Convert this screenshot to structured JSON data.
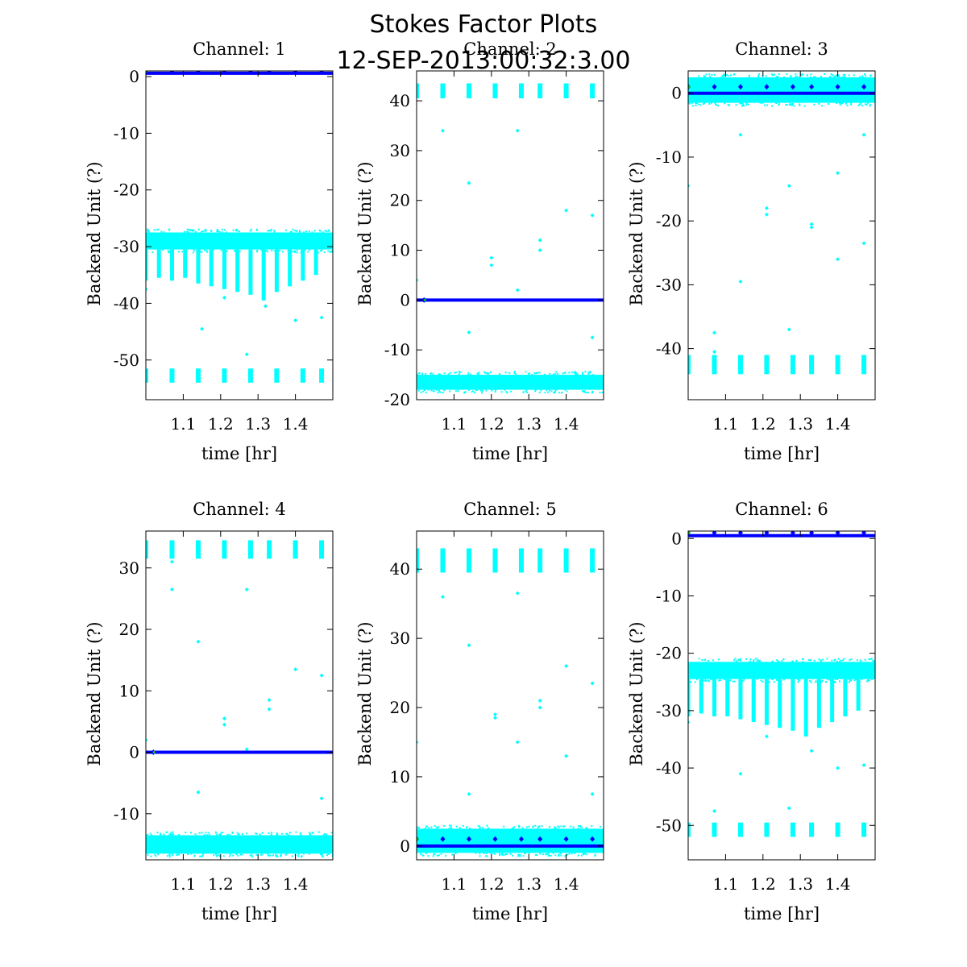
{
  "figure": {
    "title_line1": "Stokes Factor Plots",
    "title_line2": "12-SEP-2013:00:32:3.00"
  },
  "colors": {
    "data": "#00ffff",
    "mean": "#0000ff",
    "marker": "#00cc00",
    "axes": "#000000"
  },
  "chart_data": [
    {
      "type": "scatter",
      "title": "Channel: 1",
      "xlabel": "time [hr]",
      "ylabel": "Backend Unit (?)",
      "xlim": [
        1.0,
        1.5
      ],
      "ylim": [
        -57,
        1
      ],
      "xticks": [
        1.1,
        1.2,
        1.3,
        1.4
      ],
      "xtick_labels": [
        "1.1",
        "1.2",
        "1.3",
        "1.4"
      ],
      "yticks": [
        0,
        -10,
        -20,
        -30,
        -40,
        -50
      ],
      "ytick_labels": [
        "0",
        "-10",
        "-20",
        "-30",
        "-40",
        "-50"
      ],
      "series": [
        {
          "role": "band",
          "y_low": -30.5,
          "y_high": -27.5
        },
        {
          "role": "spikes",
          "x": [
            1.0,
            1.035,
            1.07,
            1.105,
            1.14,
            1.175,
            1.21,
            1.245,
            1.28,
            1.315,
            1.35,
            1.385,
            1.42,
            1.455
          ],
          "y_bottom": [
            -36,
            -35.5,
            -36,
            -35.5,
            -36.5,
            -37,
            -37.5,
            -38,
            -38.5,
            -39.5,
            -38,
            -37,
            -36,
            -35
          ]
        },
        {
          "role": "clusters",
          "x": [
            1.0,
            1.07,
            1.14,
            1.21,
            1.28,
            1.35,
            1.42,
            1.47
          ],
          "y_low": -54,
          "y_high": -51.5
        },
        {
          "role": "outliers",
          "x": [
            1.0,
            1.15,
            1.21,
            1.27,
            1.32,
            1.4,
            1.47
          ],
          "y": [
            -37.5,
            -44.5,
            -39,
            -49,
            -40.5,
            -43,
            -42.5
          ]
        },
        {
          "role": "mean",
          "y": 0.6
        },
        {
          "role": "markers",
          "x": [
            1.0,
            1.07,
            1.14,
            1.21,
            1.28,
            1.33,
            1.4,
            1.47
          ],
          "y": [
            1,
            1,
            1,
            1,
            1,
            1,
            1,
            1
          ]
        }
      ]
    },
    {
      "type": "scatter",
      "title": "Channel: 2",
      "xlabel": "time [hr]",
      "ylabel": "Backend Unit (?)",
      "xlim": [
        1.0,
        1.5
      ],
      "ylim": [
        -20,
        46
      ],
      "xticks": [
        1.1,
        1.2,
        1.3,
        1.4
      ],
      "xtick_labels": [
        "1.1",
        "1.2",
        "1.3",
        "1.4"
      ],
      "yticks": [
        40,
        30,
        20,
        10,
        0,
        -10,
        -20
      ],
      "ytick_labels": [
        "40",
        "30",
        "20",
        "10",
        "0",
        "-10",
        "-20"
      ],
      "series": [
        {
          "role": "band",
          "y_low": -18,
          "y_high": -15
        },
        {
          "role": "clusters",
          "x": [
            1.0,
            1.07,
            1.14,
            1.21,
            1.28,
            1.33,
            1.4,
            1.47
          ],
          "y_low": 40.5,
          "y_high": 43.5
        },
        {
          "role": "outliers",
          "x": [
            1.0,
            1.07,
            1.14,
            1.14,
            1.2,
            1.2,
            1.27,
            1.33,
            1.33,
            1.4,
            1.47,
            1.47,
            1.27
          ],
          "y": [
            4,
            34,
            23.5,
            -6.5,
            8.5,
            7,
            34,
            12,
            10,
            18,
            17,
            -7.5,
            2
          ]
        },
        {
          "role": "mean",
          "y": 0
        },
        {
          "role": "markers",
          "x": [
            1.02
          ],
          "y": [
            0
          ]
        }
      ]
    },
    {
      "type": "scatter",
      "title": "Channel: 3",
      "xlabel": "time [hr]",
      "ylabel": "Backend Unit (?)",
      "xlim": [
        1.0,
        1.5
      ],
      "ylim": [
        -48,
        3.5
      ],
      "xticks": [
        1.1,
        1.2,
        1.3,
        1.4
      ],
      "xtick_labels": [
        "1.1",
        "1.2",
        "1.3",
        "1.4"
      ],
      "yticks": [
        0,
        -10,
        -20,
        -30,
        -40
      ],
      "ytick_labels": [
        "0",
        "-10",
        "-20",
        "-30",
        "-40"
      ],
      "series": [
        {
          "role": "band",
          "y_low": -1.5,
          "y_high": 2.5
        },
        {
          "role": "clusters",
          "x": [
            1.0,
            1.07,
            1.14,
            1.21,
            1.28,
            1.33,
            1.4,
            1.47
          ],
          "y_low": -44,
          "y_high": -41
        },
        {
          "role": "outliers",
          "x": [
            1.0,
            1.07,
            1.07,
            1.14,
            1.14,
            1.21,
            1.21,
            1.27,
            1.27,
            1.33,
            1.33,
            1.4,
            1.4,
            1.47,
            1.47
          ],
          "y": [
            -14.5,
            -37.5,
            -40.5,
            -6.5,
            -29.5,
            -18,
            -19,
            -14.5,
            -37,
            -20.5,
            -21,
            -12.5,
            -26,
            -6.5,
            -23.5
          ]
        },
        {
          "role": "mean",
          "y": 0
        },
        {
          "role": "markers",
          "x": [
            1.0,
            1.07,
            1.14,
            1.21,
            1.28,
            1.33,
            1.4,
            1.47
          ],
          "y": [
            1,
            1,
            1,
            1,
            1,
            1,
            1,
            1
          ]
        }
      ]
    },
    {
      "type": "scatter",
      "title": "Channel: 4",
      "xlabel": "time [hr]",
      "ylabel": "Backend Unit (?)",
      "xlim": [
        1.0,
        1.5
      ],
      "ylim": [
        -17.5,
        36
      ],
      "xticks": [
        1.1,
        1.2,
        1.3,
        1.4
      ],
      "xtick_labels": [
        "1.1",
        "1.2",
        "1.3",
        "1.4"
      ],
      "yticks": [
        30,
        20,
        10,
        0,
        -10
      ],
      "ytick_labels": [
        "30",
        "20",
        "10",
        "0",
        "-10"
      ],
      "series": [
        {
          "role": "band",
          "y_low": -16.5,
          "y_high": -13.5
        },
        {
          "role": "clusters",
          "x": [
            1.0,
            1.07,
            1.14,
            1.21,
            1.28,
            1.33,
            1.4,
            1.47
          ],
          "y_low": 31.5,
          "y_high": 34.5
        },
        {
          "role": "outliers",
          "x": [
            1.0,
            1.07,
            1.07,
            1.14,
            1.14,
            1.21,
            1.21,
            1.27,
            1.27,
            1.33,
            1.33,
            1.4,
            1.47,
            1.47
          ],
          "y": [
            2,
            31,
            26.5,
            18,
            -6.5,
            5.5,
            4.5,
            26.5,
            0.5,
            8.5,
            7,
            13.5,
            12.5,
            -7.5
          ]
        },
        {
          "role": "mean",
          "y": 0
        },
        {
          "role": "markers",
          "x": [
            1.02
          ],
          "y": [
            0
          ]
        }
      ]
    },
    {
      "type": "scatter",
      "title": "Channel: 5",
      "xlabel": "time [hr]",
      "ylabel": "Backend Unit (?)",
      "xlim": [
        1.0,
        1.5
      ],
      "ylim": [
        -2,
        45.5
      ],
      "xticks": [
        1.1,
        1.2,
        1.3,
        1.4
      ],
      "xtick_labels": [
        "1.1",
        "1.2",
        "1.3",
        "1.4"
      ],
      "yticks": [
        40,
        30,
        20,
        10,
        0
      ],
      "ytick_labels": [
        "40",
        "30",
        "20",
        "10",
        "0"
      ],
      "series": [
        {
          "role": "band",
          "y_low": -1,
          "y_high": 2.5
        },
        {
          "role": "clusters",
          "x": [
            1.0,
            1.07,
            1.14,
            1.21,
            1.28,
            1.33,
            1.4,
            1.47
          ],
          "y_low": 39.5,
          "y_high": 43
        },
        {
          "role": "outliers",
          "x": [
            1.0,
            1.07,
            1.14,
            1.14,
            1.21,
            1.21,
            1.27,
            1.27,
            1.33,
            1.33,
            1.4,
            1.4,
            1.47,
            1.47
          ],
          "y": [
            15,
            36,
            29,
            7.5,
            19,
            18.5,
            36.5,
            15,
            21,
            20,
            26,
            13,
            23.5,
            7.5
          ]
        },
        {
          "role": "mean",
          "y": 0
        },
        {
          "role": "markers",
          "x": [
            1.0,
            1.07,
            1.14,
            1.21,
            1.28,
            1.33,
            1.4,
            1.47
          ],
          "y": [
            1,
            1,
            1,
            1,
            1,
            1,
            1,
            1
          ]
        }
      ]
    },
    {
      "type": "scatter",
      "title": "Channel: 6",
      "xlabel": "time [hr]",
      "ylabel": "Backend Unit (?)",
      "xlim": [
        1.0,
        1.5
      ],
      "ylim": [
        -56,
        1.3
      ],
      "xticks": [
        1.1,
        1.2,
        1.3,
        1.4
      ],
      "xtick_labels": [
        "1.1",
        "1.2",
        "1.3",
        "1.4"
      ],
      "yticks": [
        0,
        -10,
        -20,
        -30,
        -40,
        -50
      ],
      "ytick_labels": [
        "0",
        "-10",
        "-20",
        "-30",
        "-40",
        "-50"
      ],
      "series": [
        {
          "role": "band",
          "y_low": -24.5,
          "y_high": -21.5
        },
        {
          "role": "spikes",
          "x": [
            1.0,
            1.035,
            1.07,
            1.105,
            1.14,
            1.175,
            1.21,
            1.245,
            1.28,
            1.315,
            1.35,
            1.385,
            1.42,
            1.455
          ],
          "y_bottom": [
            -31,
            -30.5,
            -31,
            -31,
            -31.5,
            -32,
            -32.5,
            -33,
            -33.5,
            -34.5,
            -33,
            -32,
            -31,
            -30
          ]
        },
        {
          "role": "clusters",
          "x": [
            1.0,
            1.07,
            1.14,
            1.21,
            1.28,
            1.33,
            1.4,
            1.47
          ],
          "y_low": -52,
          "y_high": -49.5
        },
        {
          "role": "outliers",
          "x": [
            1.0,
            1.07,
            1.14,
            1.21,
            1.27,
            1.33,
            1.4,
            1.47
          ],
          "y": [
            -32,
            -47.5,
            -41,
            -34.5,
            -47,
            -37,
            -40,
            -39.5
          ]
        },
        {
          "role": "mean",
          "y": 0.5
        },
        {
          "role": "markers",
          "x": [
            1.0,
            1.07,
            1.14,
            1.21,
            1.28,
            1.33,
            1.4,
            1.47
          ],
          "y": [
            1,
            1,
            1,
            1,
            1,
            1,
            1,
            1
          ]
        }
      ]
    }
  ]
}
